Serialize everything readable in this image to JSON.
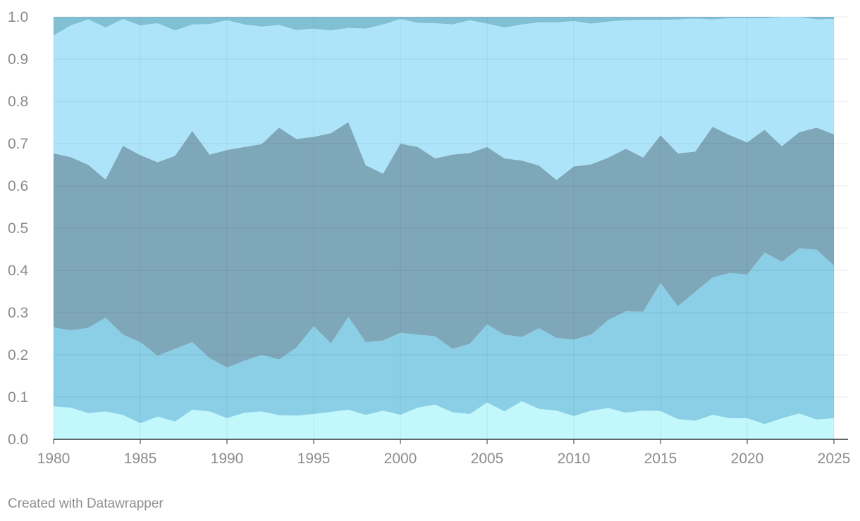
{
  "chart_data": {
    "type": "area",
    "stacked": true,
    "x": [
      1980,
      1981,
      1982,
      1983,
      1984,
      1985,
      1986,
      1987,
      1988,
      1989,
      1990,
      1991,
      1992,
      1993,
      1994,
      1995,
      1996,
      1997,
      1998,
      1999,
      2000,
      2001,
      2002,
      2003,
      2004,
      2005,
      2006,
      2007,
      2008,
      2009,
      2010,
      2011,
      2012,
      2013,
      2014,
      2015,
      2016,
      2017,
      2018,
      2019,
      2020,
      2021,
      2022,
      2023,
      2024,
      2025
    ],
    "xticks": [
      1980,
      1985,
      1990,
      1995,
      2000,
      2005,
      2010,
      2015,
      2020,
      2025
    ],
    "yticks": [
      0.0,
      0.1,
      0.2,
      0.3,
      0.4,
      0.5,
      0.6,
      0.7,
      0.8,
      0.9,
      1.0
    ],
    "ytick_labels": [
      "0.0",
      "0.1",
      "0.2",
      "0.3",
      "0.4",
      "0.5",
      "0.6",
      "0.7",
      "0.8",
      "0.9",
      "1.0"
    ],
    "xlim": [
      1980,
      2025
    ],
    "ylim": [
      0,
      1
    ],
    "grid": true,
    "legend": "none",
    "title": "",
    "xlabel": "",
    "ylabel": "",
    "series": [
      {
        "color": "#c2f8fb",
        "values": [
          0.078,
          0.075,
          0.062,
          0.066,
          0.058,
          0.038,
          0.054,
          0.042,
          0.07,
          0.066,
          0.05,
          0.063,
          0.066,
          0.057,
          0.056,
          0.06,
          0.065,
          0.07,
          0.058,
          0.068,
          0.058,
          0.075,
          0.082,
          0.064,
          0.06,
          0.087,
          0.066,
          0.09,
          0.072,
          0.068,
          0.055,
          0.068,
          0.074,
          0.063,
          0.068,
          0.067,
          0.048,
          0.044,
          0.058,
          0.05,
          0.05,
          0.036,
          0.05,
          0.061,
          0.047,
          0.05
        ]
      },
      {
        "color": "#8acfe6",
        "values": [
          0.187,
          0.183,
          0.202,
          0.222,
          0.19,
          0.192,
          0.144,
          0.172,
          0.16,
          0.126,
          0.12,
          0.123,
          0.134,
          0.132,
          0.161,
          0.208,
          0.162,
          0.22,
          0.172,
          0.166,
          0.194,
          0.173,
          0.162,
          0.15,
          0.166,
          0.185,
          0.182,
          0.152,
          0.191,
          0.172,
          0.181,
          0.18,
          0.209,
          0.24,
          0.234,
          0.303,
          0.267,
          0.305,
          0.325,
          0.344,
          0.34,
          0.406,
          0.37,
          0.391,
          0.402,
          0.361
        ]
      },
      {
        "color": "#7fa7ba",
        "values": [
          0.412,
          0.41,
          0.386,
          0.327,
          0.447,
          0.443,
          0.458,
          0.457,
          0.5,
          0.482,
          0.515,
          0.506,
          0.499,
          0.549,
          0.494,
          0.448,
          0.498,
          0.461,
          0.419,
          0.395,
          0.448,
          0.444,
          0.421,
          0.46,
          0.452,
          0.42,
          0.417,
          0.418,
          0.385,
          0.374,
          0.41,
          0.403,
          0.384,
          0.385,
          0.365,
          0.35,
          0.362,
          0.332,
          0.357,
          0.326,
          0.313,
          0.291,
          0.274,
          0.275,
          0.289,
          0.311
        ]
      },
      {
        "color": "#aee4f9",
        "values": [
          0.279,
          0.312,
          0.344,
          0.36,
          0.3,
          0.307,
          0.329,
          0.297,
          0.252,
          0.309,
          0.307,
          0.29,
          0.278,
          0.243,
          0.258,
          0.256,
          0.243,
          0.223,
          0.323,
          0.353,
          0.295,
          0.294,
          0.32,
          0.308,
          0.314,
          0.292,
          0.31,
          0.322,
          0.339,
          0.373,
          0.344,
          0.333,
          0.322,
          0.304,
          0.326,
          0.273,
          0.317,
          0.315,
          0.254,
          0.277,
          0.294,
          0.264,
          0.306,
          0.273,
          0.256,
          0.273
        ]
      },
      {
        "color": "#80c0d2",
        "values": [
          0.044,
          0.02,
          0.006,
          0.025,
          0.005,
          0.02,
          0.015,
          0.032,
          0.018,
          0.017,
          0.008,
          0.018,
          0.023,
          0.019,
          0.031,
          0.028,
          0.032,
          0.026,
          0.028,
          0.018,
          0.005,
          0.014,
          0.015,
          0.018,
          0.008,
          0.016,
          0.025,
          0.018,
          0.013,
          0.013,
          0.01,
          0.016,
          0.011,
          0.008,
          0.007,
          0.007,
          0.006,
          0.004,
          0.006,
          0.003,
          0.003,
          0.003,
          0,
          0,
          0.006,
          0.005
        ]
      }
    ]
  },
  "footer": {
    "credit": "Created with Datawrapper"
  }
}
